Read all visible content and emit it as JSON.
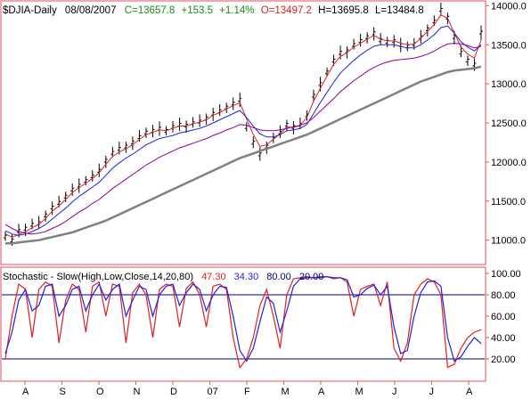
{
  "header": {
    "symbol": "$DJIA-Daily",
    "date": "08/08/2007",
    "close": "C=13657.8",
    "change": "+153.5",
    "pct": "+1.14%",
    "open": "O=13497.2",
    "high": "H=13695.8",
    "low": "L=13484.8"
  },
  "stoch_header": {
    "label": "Stochastic - Slow(High,Low,Close,14,20,80)",
    "k_value": "47.30",
    "d_value": "34.30",
    "upper": "80.00",
    "lower": "20.00"
  },
  "colors": {
    "frame": "#e05060",
    "bg": "#ffffff",
    "green": "#109010",
    "red": "#e02020",
    "blue": "#2020e0",
    "purple": "#900090",
    "gray": "#808080",
    "navy": "#000080"
  },
  "chart_data": [
    {
      "type": "line",
      "x_ticks": [
        "A",
        "S",
        "O",
        "N",
        "D",
        "07",
        "F",
        "M",
        "A",
        "M",
        "J",
        "J",
        "A"
      ],
      "y_ticks": [
        "14000.0",
        "13500.0",
        "13000.0",
        "12500.0",
        "12000.0",
        "11500.0",
        "11000.0"
      ],
      "ylim": [
        10700,
        14050
      ],
      "series": [
        {
          "key": "price",
          "values": [
            11050,
            11000,
            11120,
            11150,
            11200,
            11220,
            11320,
            11420,
            11480,
            11560,
            11650,
            11700,
            11760,
            11820,
            11890,
            12020,
            12120,
            12170,
            12200,
            12250,
            12320,
            12380,
            12400,
            12430,
            12400,
            12450,
            12480,
            12470,
            12500,
            12520,
            12560,
            12620,
            12650,
            12700,
            12750,
            12800,
            12450,
            12250,
            12100,
            12200,
            12300,
            12380,
            12480,
            12450,
            12480,
            12600,
            12850,
            13000,
            13150,
            13300,
            13400,
            13420,
            13500,
            13550,
            13600,
            13650,
            13560,
            13540,
            13550,
            13500,
            13480,
            13510,
            13600,
            13700,
            13800,
            13950,
            13850,
            13600,
            13400,
            13300,
            13250,
            13657.8
          ]
        },
        {
          "key": "ma_short",
          "values": [
            11080,
            11040,
            11070,
            11110,
            11160,
            11200,
            11280,
            11370,
            11440,
            11520,
            11610,
            11670,
            11730,
            11790,
            11860,
            11970,
            12070,
            12130,
            12170,
            12220,
            12290,
            12350,
            12380,
            12410,
            12400,
            12430,
            12460,
            12460,
            12490,
            12510,
            12540,
            12600,
            12630,
            12680,
            12720,
            12760,
            12550,
            12350,
            12200,
            12220,
            12290,
            12360,
            12450,
            12440,
            12470,
            12570,
            12780,
            12940,
            13100,
            13250,
            13350,
            13400,
            13470,
            13520,
            13570,
            13620,
            13570,
            13550,
            13550,
            13520,
            13500,
            13510,
            13580,
            13670,
            13760,
            13880,
            13840,
            13650,
            13470,
            13380,
            13330,
            13560
          ]
        },
        {
          "key": "ma_mid",
          "values": [
            11120,
            11080,
            11060,
            11080,
            11110,
            11150,
            11200,
            11270,
            11340,
            11410,
            11490,
            11560,
            11620,
            11680,
            11740,
            11830,
            11920,
            11990,
            12050,
            12100,
            12160,
            12220,
            12260,
            12300,
            12320,
            12340,
            12370,
            12390,
            12410,
            12430,
            12460,
            12500,
            12540,
            12580,
            12620,
            12660,
            12570,
            12460,
            12360,
            12320,
            12320,
            12350,
            12400,
            12410,
            12430,
            12480,
            12620,
            12760,
            12890,
            13020,
            13140,
            13220,
            13300,
            13370,
            13430,
            13480,
            13500,
            13500,
            13500,
            13480,
            13460,
            13460,
            13500,
            13560,
            13630,
            13720,
            13740,
            13650,
            13540,
            13470,
            13420,
            13500
          ]
        },
        {
          "key": "ma_long",
          "values": [
            11200,
            11150,
            11110,
            11090,
            11080,
            11090,
            11110,
            11150,
            11190,
            11240,
            11300,
            11360,
            11410,
            11470,
            11520,
            11590,
            11660,
            11720,
            11780,
            11840,
            11900,
            11960,
            12010,
            12060,
            12100,
            12140,
            12180,
            12210,
            12240,
            12270,
            12300,
            12340,
            12370,
            12410,
            12440,
            12480,
            12470,
            12440,
            12410,
            12400,
            12400,
            12410,
            12430,
            12450,
            12470,
            12500,
            12570,
            12650,
            12730,
            12810,
            12900,
            12970,
            13040,
            13100,
            13160,
            13210,
            13250,
            13280,
            13300,
            13310,
            13320,
            13330,
            13350,
            13380,
            13420,
            13470,
            13510,
            13520,
            13510,
            13490,
            13460,
            13480
          ]
        },
        {
          "key": "ma_200",
          "values": [
            10960,
            10960,
            10970,
            10980,
            10990,
            11000,
            11020,
            11040,
            11060,
            11080,
            11100,
            11130,
            11160,
            11190,
            11220,
            11250,
            11290,
            11330,
            11370,
            11410,
            11450,
            11490,
            11530,
            11570,
            11610,
            11650,
            11690,
            11730,
            11770,
            11810,
            11850,
            11890,
            11930,
            11970,
            12010,
            12050,
            12080,
            12110,
            12140,
            12170,
            12200,
            12230,
            12260,
            12290,
            12320,
            12350,
            12390,
            12430,
            12470,
            12510,
            12550,
            12590,
            12630,
            12670,
            12710,
            12750,
            12790,
            12830,
            12870,
            12910,
            12950,
            12990,
            13030,
            13060,
            13090,
            13120,
            13150,
            13170,
            13180,
            13190,
            13200,
            13220
          ]
        }
      ]
    },
    {
      "type": "line",
      "x_ticks": [
        "A",
        "S",
        "O",
        "N",
        "D",
        "07",
        "F",
        "M",
        "A",
        "M",
        "J",
        "J",
        "A"
      ],
      "y_ticks": [
        "100.00",
        "80.00",
        "60.00",
        "40.00",
        "20.00"
      ],
      "ylim": [
        0,
        105
      ],
      "ref_lines": [
        80,
        20
      ],
      "series": [
        {
          "key": "pct_k",
          "values": [
            20,
            60,
            90,
            85,
            40,
            85,
            92,
            88,
            35,
            75,
            90,
            85,
            45,
            88,
            92,
            60,
            90,
            88,
            35,
            82,
            90,
            80,
            40,
            85,
            90,
            88,
            50,
            86,
            92,
            80,
            50,
            88,
            90,
            85,
            40,
            12,
            20,
            40,
            70,
            85,
            60,
            30,
            80,
            95,
            96,
            97,
            96,
            97,
            97,
            95,
            96,
            92,
            60,
            85,
            88,
            90,
            70,
            92,
            30,
            18,
            35,
            80,
            90,
            95,
            92,
            80,
            12,
            15,
            30,
            40,
            45,
            47.3
          ]
        },
        {
          "key": "pct_d",
          "values": [
            25,
            45,
            75,
            85,
            65,
            70,
            88,
            90,
            60,
            70,
            85,
            88,
            65,
            80,
            90,
            75,
            85,
            90,
            60,
            75,
            88,
            85,
            60,
            80,
            88,
            90,
            70,
            82,
            90,
            85,
            65,
            80,
            88,
            87,
            60,
            28,
            18,
            30,
            55,
            78,
            72,
            45,
            65,
            88,
            95,
            96,
            96,
            96,
            97,
            96,
            96,
            94,
            78,
            80,
            86,
            89,
            80,
            88,
            50,
            25,
            28,
            60,
            82,
            92,
            93,
            88,
            40,
            18,
            22,
            32,
            40,
            34.3
          ]
        }
      ]
    }
  ]
}
